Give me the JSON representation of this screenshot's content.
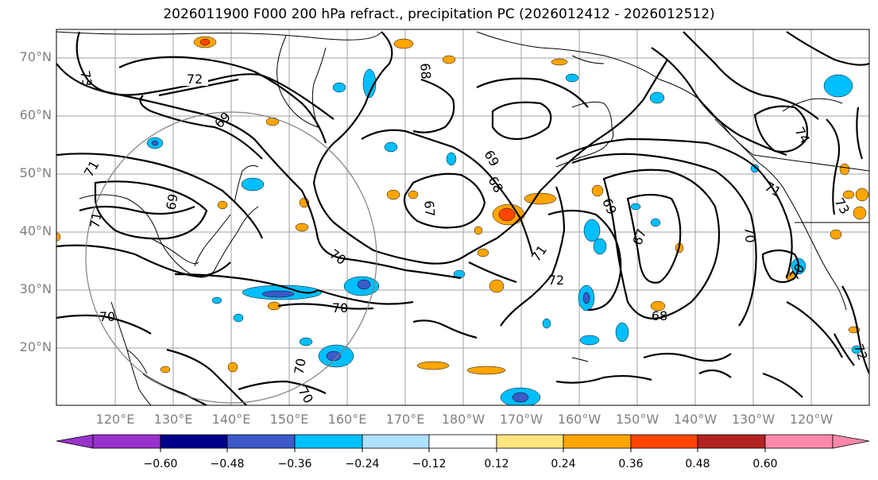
{
  "title": "2026011900 F000 200 hPa refract., precipitation PC (2026012412 - 2026012512)",
  "lat_labels": [
    "70°N",
    "60°N",
    "50°N",
    "40°N",
    "30°N",
    "20°N"
  ],
  "lon_labels": [
    "120°E",
    "130°E",
    "140°E",
    "150°E",
    "160°E",
    "170°E",
    "180°W",
    "170°W",
    "160°W",
    "150°W",
    "140°W",
    "130°W",
    "120°W"
  ],
  "contour_labels": [
    "72",
    "73",
    "68",
    "69",
    "71",
    "69",
    "71",
    "67",
    "70",
    "69",
    "68",
    "69",
    "71",
    "72",
    "71",
    "67",
    "70",
    "74",
    "73",
    "70",
    "70",
    "70",
    "70",
    "68",
    "72",
    "70"
  ],
  "colorbar": {
    "colors": [
      "#9932cc",
      "#00008b",
      "#3c5ac8",
      "#00bfff",
      "#b0e0ff",
      "#ffffff",
      "#ffe680",
      "#ffa500",
      "#ff4500",
      "#b22222",
      "#ff88aa"
    ],
    "labels": [
      "−0.60",
      "−0.48",
      "−0.36",
      "−0.24",
      "−0.12",
      "0.12",
      "0.24",
      "0.36",
      "0.48",
      "0.60"
    ]
  },
  "colors": {
    "grid": "#a0a0a0",
    "contour": "#000000",
    "coast": "#000000",
    "circle": "#808080"
  }
}
